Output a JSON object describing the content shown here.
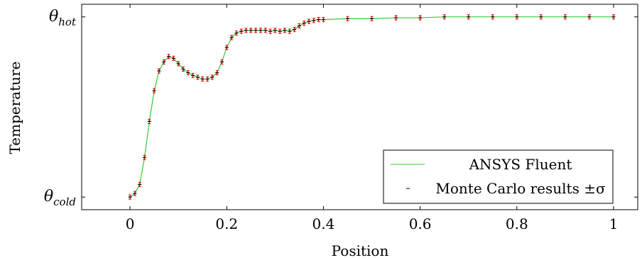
{
  "chart_data": {
    "type": "line",
    "title": "",
    "xlabel": "Position",
    "ylabel": "Temperature",
    "xlim": [
      -0.1,
      1.05
    ],
    "ylim": [
      -0.07,
      1.07
    ],
    "x_ticks": [
      {
        "value": 0,
        "label": "0"
      },
      {
        "value": 0.2,
        "label": "0.2"
      },
      {
        "value": 0.4,
        "label": "0.4"
      },
      {
        "value": 0.6,
        "label": "0.6"
      },
      {
        "value": 0.8,
        "label": "0.8"
      },
      {
        "value": 1.0,
        "label": "1"
      }
    ],
    "y_ticks": [
      {
        "value": 0,
        "base": "θ",
        "sub": "cold"
      },
      {
        "value": 1,
        "base": "θ",
        "sub": "hot"
      }
    ],
    "legend": {
      "position": "bottom-right",
      "entries": [
        {
          "label": "ANSYS Fluent",
          "marker": "line",
          "color": "#33cc33"
        },
        {
          "label": "Monte Carlo results ±σ",
          "marker": "error-bar",
          "color": "#000000"
        }
      ]
    },
    "grid": false,
    "series": [
      {
        "name": "ANSYS Fluent",
        "style": "line",
        "color": "#33cc33",
        "x": [
          0.0,
          0.01,
          0.02,
          0.03,
          0.04,
          0.05,
          0.06,
          0.07,
          0.08,
          0.09,
          0.1,
          0.11,
          0.12,
          0.13,
          0.14,
          0.15,
          0.16,
          0.17,
          0.18,
          0.19,
          0.2,
          0.21,
          0.22,
          0.23,
          0.24,
          0.25,
          0.26,
          0.27,
          0.28,
          0.29,
          0.3,
          0.31,
          0.32,
          0.33,
          0.34,
          0.35,
          0.36,
          0.37,
          0.38,
          0.39,
          0.4,
          0.45,
          0.5,
          0.55,
          0.6,
          0.65,
          0.7,
          0.75,
          0.8,
          0.85,
          0.9,
          0.95,
          1.0
        ],
        "values": [
          0.0,
          0.02,
          0.07,
          0.22,
          0.42,
          0.59,
          0.7,
          0.75,
          0.78,
          0.77,
          0.74,
          0.71,
          0.69,
          0.675,
          0.665,
          0.655,
          0.655,
          0.665,
          0.69,
          0.75,
          0.83,
          0.885,
          0.91,
          0.92,
          0.925,
          0.925,
          0.925,
          0.925,
          0.925,
          0.92,
          0.925,
          0.92,
          0.925,
          0.92,
          0.93,
          0.95,
          0.965,
          0.975,
          0.98,
          0.985,
          0.985,
          0.99,
          0.99,
          0.995,
          0.995,
          1.0,
          1.0,
          1.0,
          1.0,
          1.0,
          1.0,
          1.0,
          1.0
        ]
      },
      {
        "name": "Monte Carlo results ±σ",
        "style": "error-bars",
        "color": "#000000",
        "error_color": "#dd0000",
        "sigma": 0.012,
        "x": [
          0.0,
          0.01,
          0.02,
          0.03,
          0.04,
          0.05,
          0.06,
          0.07,
          0.08,
          0.09,
          0.1,
          0.11,
          0.12,
          0.13,
          0.14,
          0.15,
          0.16,
          0.17,
          0.18,
          0.19,
          0.2,
          0.21,
          0.22,
          0.23,
          0.24,
          0.25,
          0.26,
          0.27,
          0.28,
          0.29,
          0.3,
          0.31,
          0.32,
          0.33,
          0.34,
          0.35,
          0.36,
          0.37,
          0.38,
          0.39,
          0.4,
          0.45,
          0.5,
          0.55,
          0.6,
          0.65,
          0.7,
          0.75,
          0.8,
          0.85,
          0.9,
          0.95,
          1.0
        ],
        "values": [
          0.0,
          0.02,
          0.07,
          0.22,
          0.42,
          0.59,
          0.7,
          0.75,
          0.78,
          0.77,
          0.74,
          0.71,
          0.69,
          0.675,
          0.665,
          0.655,
          0.655,
          0.665,
          0.69,
          0.75,
          0.83,
          0.885,
          0.91,
          0.92,
          0.925,
          0.925,
          0.925,
          0.925,
          0.925,
          0.92,
          0.925,
          0.92,
          0.925,
          0.92,
          0.93,
          0.95,
          0.965,
          0.975,
          0.98,
          0.985,
          0.985,
          0.99,
          0.99,
          0.995,
          0.995,
          1.0,
          1.0,
          1.0,
          1.0,
          1.0,
          1.0,
          1.0,
          1.0
        ]
      }
    ]
  }
}
